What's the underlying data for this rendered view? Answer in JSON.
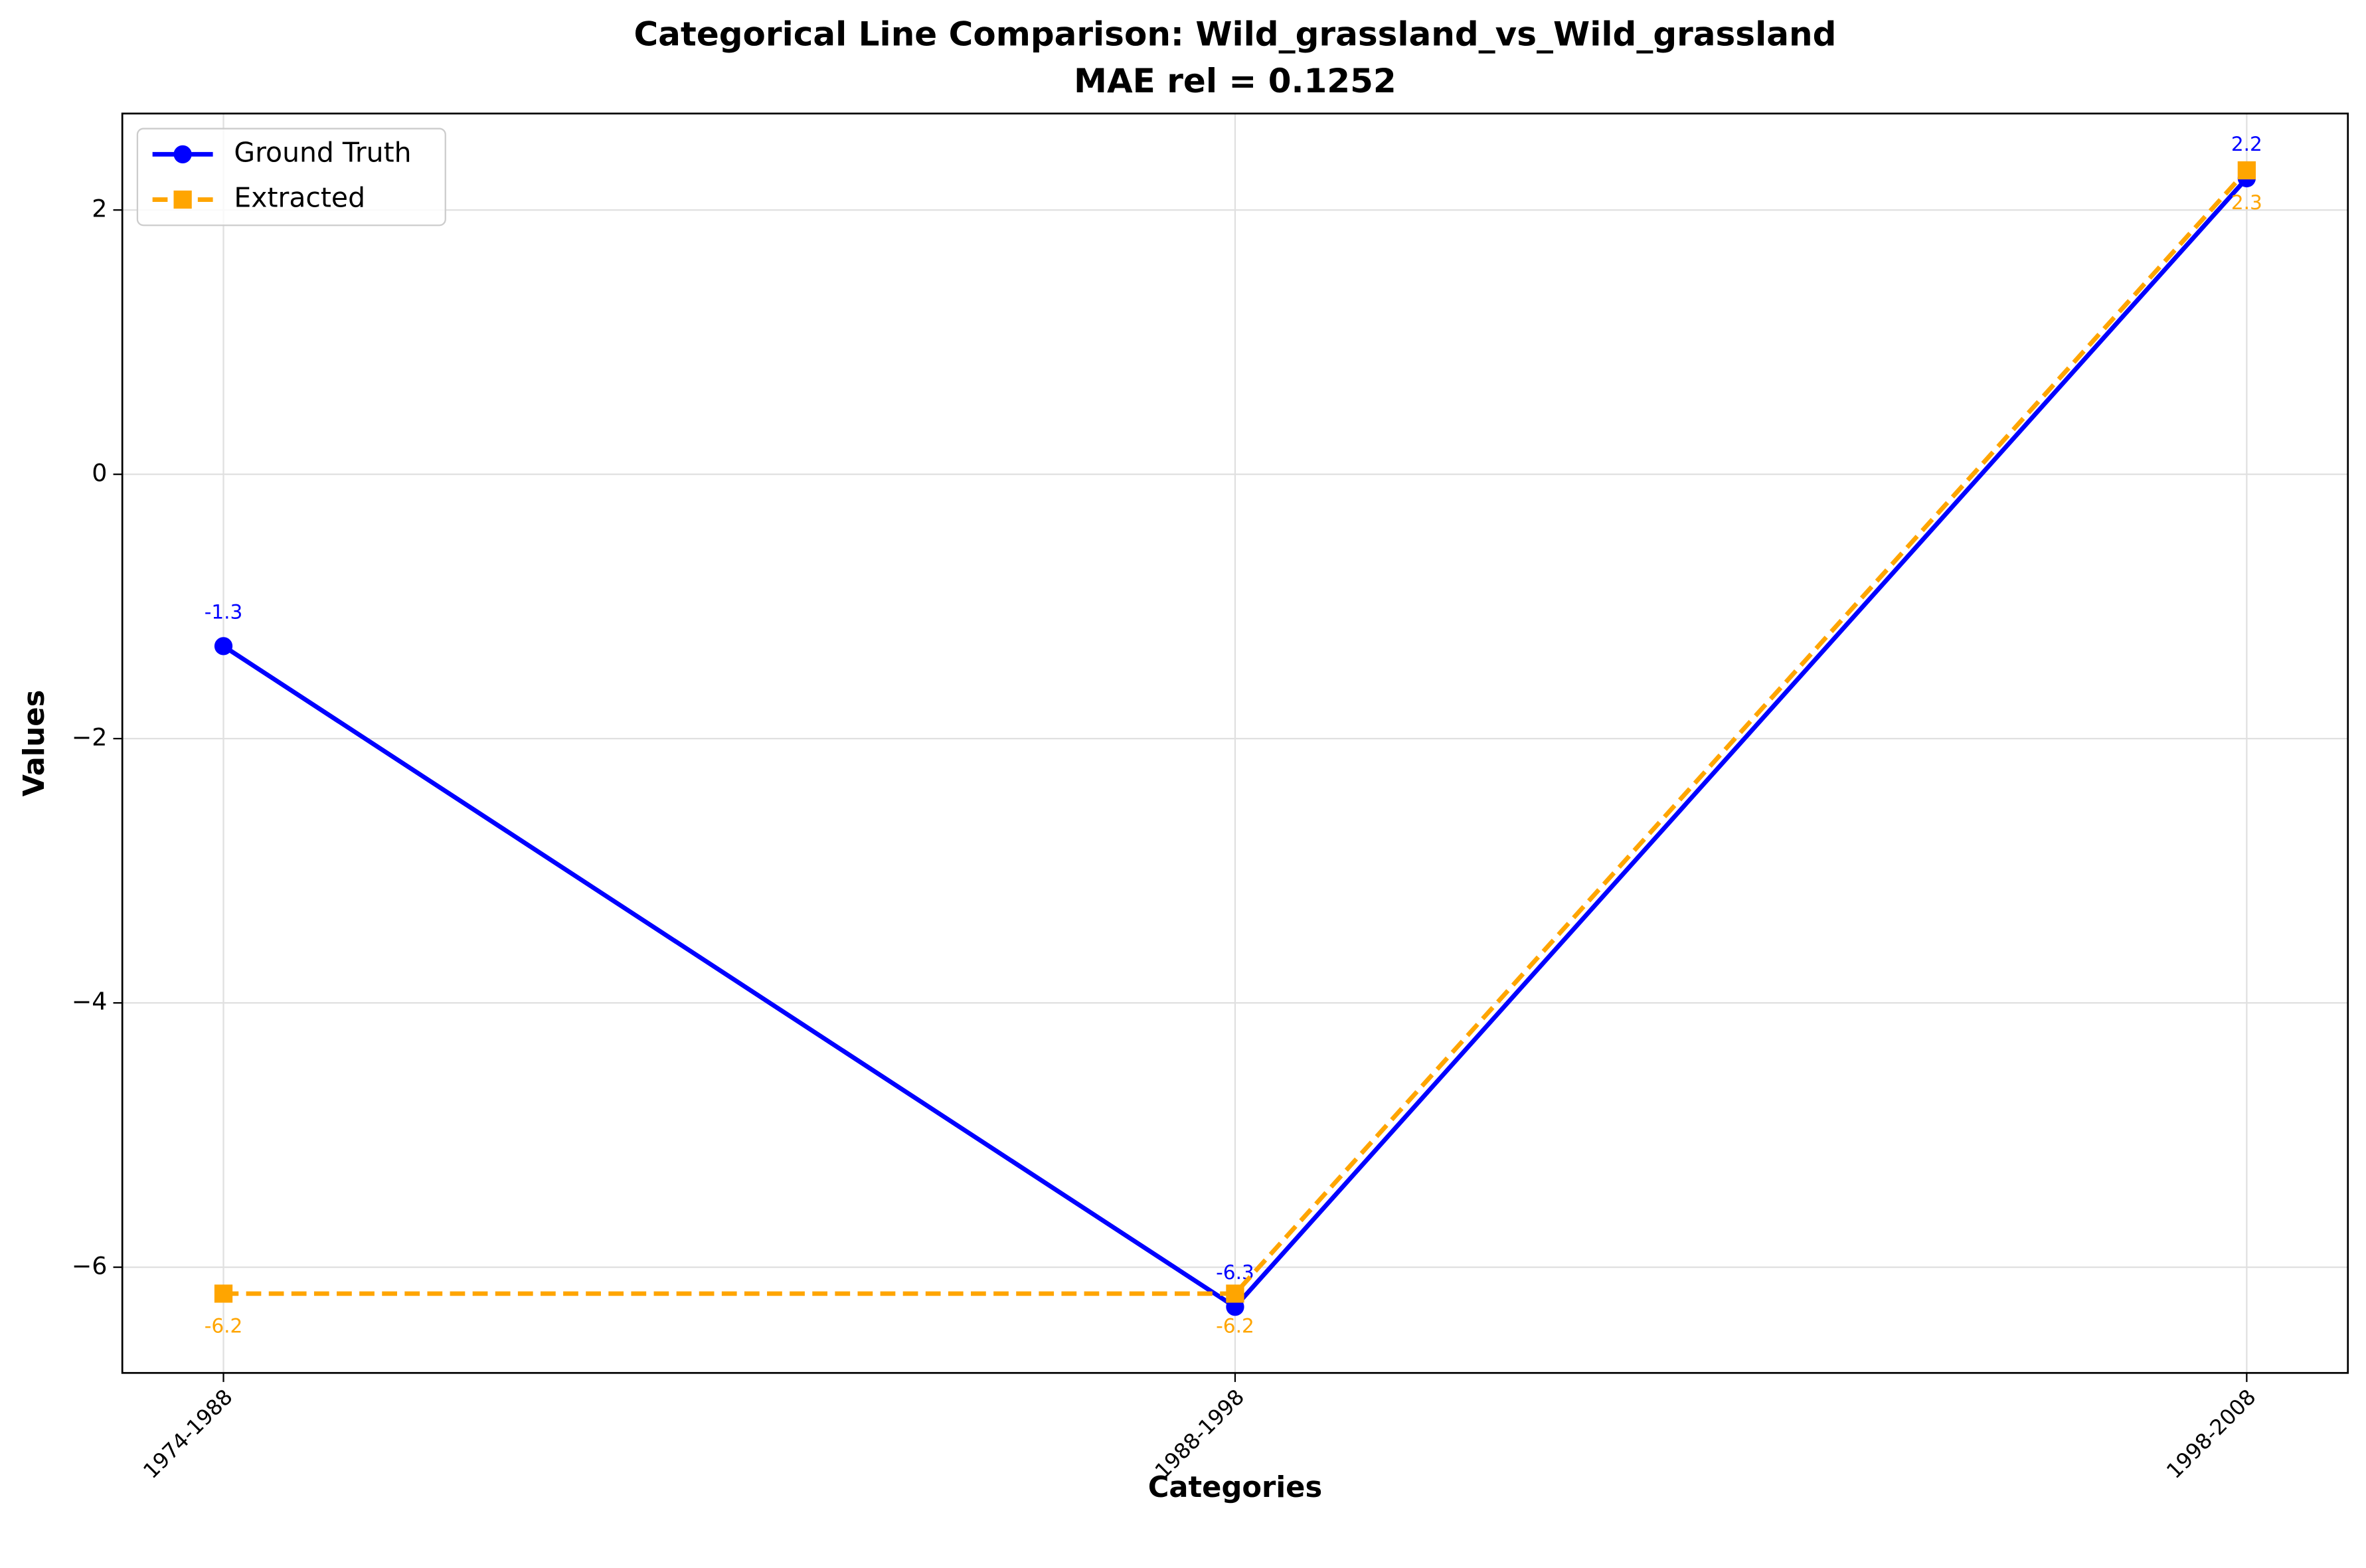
{
  "chart_data": {
    "type": "line",
    "title": "Categorical Line Comparison: Wild_grassland_vs_Wild_grassland",
    "subtitle": "MAE rel = 0.1252",
    "x_label": "Categories",
    "y_label": "Values",
    "categories": [
      "1974-1988",
      "1988-1998",
      "1998-2008"
    ],
    "series": [
      {
        "name": "Ground Truth",
        "color": "#0000ff",
        "marker": "circle",
        "linestyle": "solid",
        "values": [
          -1.3,
          -6.3,
          2.24
        ],
        "value_labels": [
          "-1.3",
          "-6.3",
          "2.2"
        ]
      },
      {
        "name": "Extracted",
        "color": "#ffa500",
        "marker": "square",
        "linestyle": "dashed",
        "values": [
          -6.2,
          -6.2,
          2.3
        ],
        "value_labels": [
          "-6.2",
          "-6.2",
          "2.3"
        ]
      }
    ],
    "ylim": [
      -6.8,
      2.73
    ],
    "yticks": [
      {
        "value": -6,
        "label": "−6"
      },
      {
        "value": -4,
        "label": "−4"
      },
      {
        "value": -2,
        "label": "−2"
      },
      0,
      2
    ],
    "grid": true,
    "legend": "upper left"
  }
}
